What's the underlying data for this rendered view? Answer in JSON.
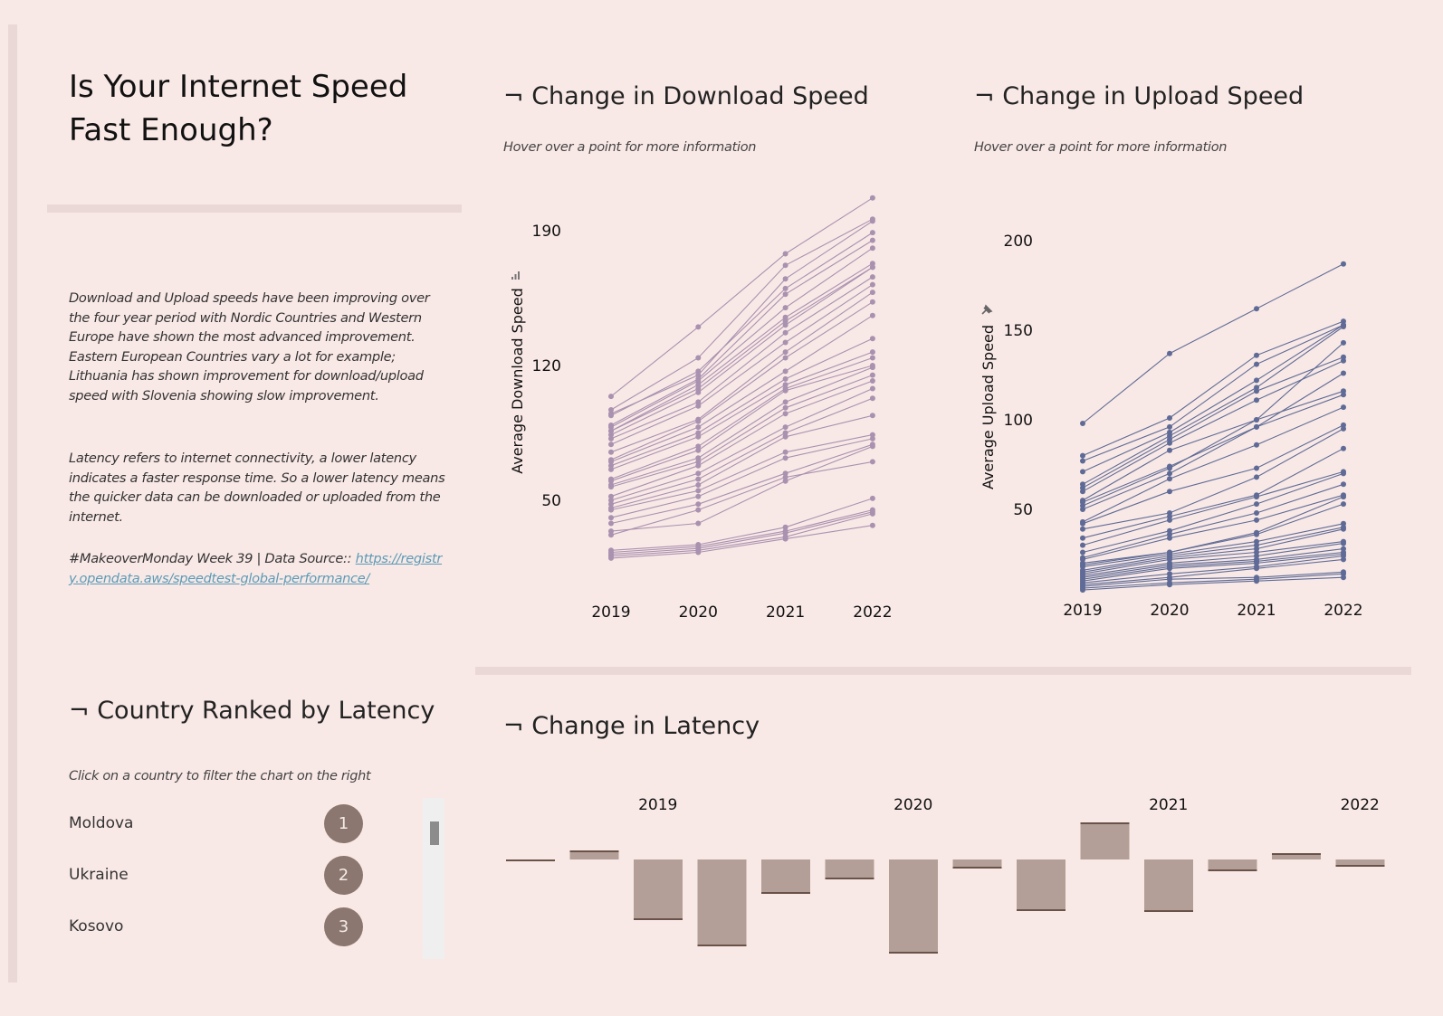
{
  "page": {
    "title_line1": "Is Your Internet Speed",
    "title_line2": "Fast Enough?",
    "description_p1": "Download and Upload speeds have been improving over the four year period with Nordic Countries and Western Europe have shown the most advanced improvement. Eastern European Countries vary a lot for example; Lithuania has shown improvement for download/upload speed with Slovenia showing slow improvement.",
    "description_p2": "Latency refers to internet connectivity,  a lower latency indicates a faster response time. So a lower latency means the quicker data can be downloaded or uploaded from the internet.",
    "source_prefix": "#MakeoverMonday Week 39 | Data Source:: ",
    "source_link_text": "https://registry.opendata.aws/speedtest-global-performance/"
  },
  "colors": {
    "background": "#f9e9e6",
    "divider": "#ead8d6",
    "download_line": "#a991b0",
    "upload_line": "#5f6b96",
    "latency_bar": "#b39f97",
    "latency_edge": "#6a5249",
    "rank_badge": "#8b776f",
    "link": "#5b9bb7"
  },
  "download": {
    "title": "¬ Change in Download Speed",
    "subtitle": "Hover over a point for more information",
    "axis_icon": "bar-chart-icon"
  },
  "upload": {
    "title": "¬ Change in Upload Speed",
    "subtitle": "Hover over a point for more information",
    "axis_icon": "pin-icon"
  },
  "latency": {
    "title": "¬ Change in Latency"
  },
  "ranking": {
    "title": "¬ Country Ranked by Latency",
    "subtitle": "Click on a country to filter the chart on the right",
    "items": [
      {
        "name": "Moldova",
        "rank": "1"
      },
      {
        "name": "Ukraine",
        "rank": "2"
      },
      {
        "name": "Kosovo",
        "rank": "3"
      }
    ]
  },
  "chart_data": [
    {
      "id": "download",
      "type": "line",
      "title": "Change in Download Speed",
      "xlabel": "",
      "ylabel": "Average Download Speed",
      "x": [
        "2019",
        "2020",
        "2021",
        "2022"
      ],
      "yticks": [
        50,
        120,
        190
      ],
      "ylim": [
        15,
        215
      ],
      "grid": false,
      "series": [
        {
          "values": [
            104,
            140,
            178,
            207
          ]
        },
        {
          "values": [
            97,
            124,
            172,
            196
          ]
        },
        {
          "values": [
            95,
            115,
            165,
            195
          ]
        },
        {
          "values": [
            94,
            117,
            160,
            189
          ]
        },
        {
          "values": [
            89,
            113,
            157,
            185
          ]
        },
        {
          "values": [
            88,
            112,
            150,
            181
          ]
        },
        {
          "values": [
            86,
            110,
            145,
            173
          ]
        },
        {
          "values": [
            86,
            108,
            143,
            171
          ]
        },
        {
          "values": [
            84,
            106,
            141,
            171
          ]
        },
        {
          "values": [
            82,
            101,
            137,
            166
          ]
        },
        {
          "values": [
            79,
            99,
            132,
            162
          ]
        },
        {
          "values": [
            75,
            92,
            127,
            158
          ]
        },
        {
          "values": [
            71,
            91,
            124,
            153
          ]
        },
        {
          "values": [
            70,
            88,
            117,
            146
          ]
        },
        {
          "values": [
            68,
            85,
            113,
            134
          ]
        },
        {
          "values": [
            66,
            83,
            110,
            127
          ]
        },
        {
          "values": [
            61,
            78,
            108,
            124
          ]
        },
        {
          "values": [
            60,
            76,
            107,
            120
          ]
        },
        {
          "values": [
            58,
            72,
            101,
            119
          ]
        },
        {
          "values": [
            57,
            70,
            98,
            115
          ]
        },
        {
          "values": [
            52,
            68,
            95,
            112
          ]
        },
        {
          "values": [
            50,
            64,
            88,
            108
          ]
        },
        {
          "values": [
            48,
            61,
            85,
            103
          ]
        },
        {
          "values": [
            46,
            58,
            83,
            94
          ]
        },
        {
          "values": [
            45,
            55,
            75,
            84
          ]
        },
        {
          "values": [
            41,
            52,
            72,
            82
          ]
        },
        {
          "values": [
            38,
            48,
            64,
            79
          ]
        },
        {
          "values": [
            34,
            38,
            60,
            78
          ]
        },
        {
          "values": [
            32,
            45,
            62,
            70
          ]
        },
        {
          "values": [
            24,
            27,
            36,
            51
          ]
        },
        {
          "values": [
            23,
            26,
            34,
            45
          ]
        },
        {
          "values": [
            22,
            25,
            33,
            44
          ]
        },
        {
          "values": [
            21,
            24,
            31,
            43
          ]
        },
        {
          "values": [
            20,
            23,
            30,
            37
          ]
        }
      ]
    },
    {
      "id": "upload",
      "type": "line",
      "title": "Change in Upload Speed",
      "xlabel": "",
      "ylabel": "Average Upload Speed",
      "x": [
        "2019",
        "2020",
        "2021",
        "2022"
      ],
      "yticks": [
        50,
        100,
        150,
        200
      ],
      "ylim": [
        5,
        205
      ],
      "grid": false,
      "series": [
        {
          "values": [
            98,
            137,
            162,
            187
          ]
        },
        {
          "values": [
            80,
            101,
            136,
            155
          ]
        },
        {
          "values": [
            77,
            96,
            131,
            153
          ]
        },
        {
          "values": [
            71,
            93,
            122,
            153
          ]
        },
        {
          "values": [
            64,
            91,
            118,
            152
          ]
        },
        {
          "values": [
            62,
            89,
            116,
            135
          ]
        },
        {
          "values": [
            60,
            87,
            111,
            133
          ]
        },
        {
          "values": [
            55,
            83,
            100,
            143
          ]
        },
        {
          "values": [
            54,
            74,
            96,
            126
          ]
        },
        {
          "values": [
            52,
            73,
            100,
            116
          ]
        },
        {
          "values": [
            50,
            70,
            96,
            114
          ]
        },
        {
          "values": [
            43,
            67,
            86,
            107
          ]
        },
        {
          "values": [
            42,
            60,
            73,
            97
          ]
        },
        {
          "values": [
            39,
            48,
            68,
            95
          ]
        },
        {
          "values": [
            34,
            46,
            58,
            84
          ]
        },
        {
          "values": [
            30,
            44,
            57,
            71
          ]
        },
        {
          "values": [
            26,
            38,
            53,
            70
          ]
        },
        {
          "values": [
            23,
            36,
            48,
            64
          ]
        },
        {
          "values": [
            22,
            34,
            44,
            58
          ]
        },
        {
          "values": [
            20,
            26,
            37,
            57
          ]
        },
        {
          "values": [
            19,
            26,
            36,
            53
          ]
        },
        {
          "values": [
            18,
            25,
            32,
            42
          ]
        },
        {
          "values": [
            16,
            24,
            30,
            40
          ]
        },
        {
          "values": [
            15,
            23,
            28,
            39
          ]
        },
        {
          "values": [
            14,
            22,
            26,
            32
          ]
        },
        {
          "values": [
            13,
            20,
            24,
            31
          ]
        },
        {
          "values": [
            12,
            19,
            22,
            28
          ]
        },
        {
          "values": [
            11,
            18,
            21,
            26
          ]
        },
        {
          "values": [
            10,
            17,
            20,
            25
          ]
        },
        {
          "values": [
            9,
            14,
            18,
            24
          ]
        },
        {
          "values": [
            8,
            12,
            17,
            22
          ]
        },
        {
          "values": [
            7,
            11,
            12,
            15
          ]
        },
        {
          "values": [
            6,
            9,
            11,
            14
          ]
        },
        {
          "values": [
            5,
            8,
            10,
            12
          ]
        }
      ]
    },
    {
      "id": "latency",
      "type": "bar",
      "title": "Change in Latency",
      "xlabel": "",
      "ylabel": "",
      "year_labels": [
        "2019",
        "2020",
        "2021",
        "2022"
      ],
      "year_label_positions": [
        2,
        6,
        10,
        13
      ],
      "values": [
        0,
        1.0,
        -6.7,
        -9.6,
        -3.8,
        -2.2,
        -10.4,
        -1.0,
        -5.7,
        4.1,
        -5.8,
        -1.3,
        0.7,
        -0.8
      ],
      "ylim": [
        -11,
        5
      ],
      "grid": false
    }
  ]
}
